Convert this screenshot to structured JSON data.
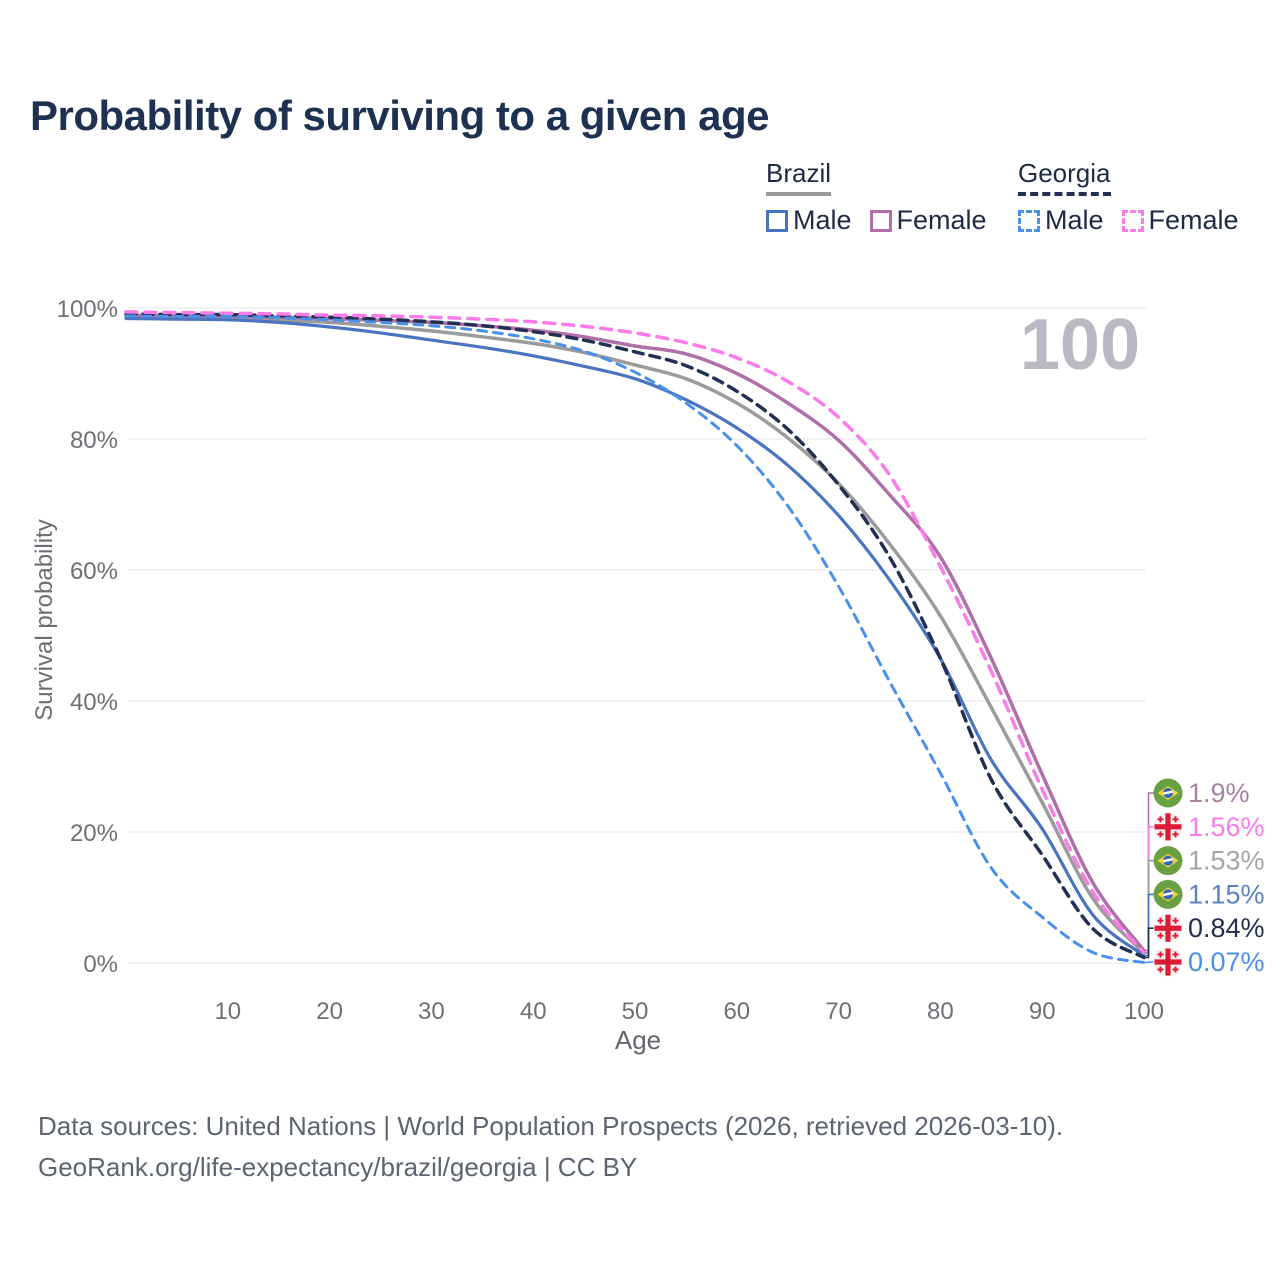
{
  "title": "Probability of surviving to a given age",
  "watermark": "100",
  "legend": {
    "groups": [
      {
        "country": "Brazil",
        "underline_style": "solid",
        "underline_color": "#9b9b9b",
        "items": [
          {
            "label": "Male",
            "color": "#4a74c0",
            "dashed": false
          },
          {
            "label": "Female",
            "color": "#b06fa8",
            "dashed": false
          }
        ]
      },
      {
        "country": "Georgia",
        "underline_style": "dashed",
        "underline_color": "#223053",
        "items": [
          {
            "label": "Male",
            "color": "#4a90e8",
            "dashed": true
          },
          {
            "label": "Female",
            "color": "#fb7ce8",
            "dashed": true
          }
        ]
      }
    ]
  },
  "y_axis": {
    "title": "Survival probability",
    "ticks": [
      "0%",
      "20%",
      "40%",
      "60%",
      "80%",
      "100%"
    ],
    "tick_values": [
      0,
      20,
      40,
      60,
      80,
      100
    ]
  },
  "x_axis": {
    "title": "Age",
    "ticks": [
      10,
      20,
      30,
      40,
      50,
      60,
      70,
      80,
      90,
      100
    ],
    "range": [
      0,
      100
    ]
  },
  "footer": {
    "line1": "Data sources: United Nations | World Population Prospects (2026, retrieved 2026-03-10).",
    "line2": "GeoRank.org/life-expectancy/brazil/georgia | CC BY"
  },
  "chart_data": {
    "type": "line",
    "title": "Probability of surviving to a given age",
    "xlabel": "Age",
    "ylabel": "Survival probability",
    "xlim": [
      0,
      100
    ],
    "ylim": [
      0,
      100
    ],
    "grid": "horizontal",
    "x_ages": [
      0,
      5,
      10,
      15,
      20,
      25,
      30,
      35,
      40,
      45,
      50,
      55,
      60,
      65,
      70,
      75,
      80,
      85,
      90,
      95,
      100
    ],
    "series": [
      {
        "id": "brazil-all",
        "country": "Brazil",
        "group": "All",
        "color": "#9b9b9b",
        "dash": null,
        "width": 3.5,
        "icon": "brazil-flag-icon",
        "end_label": "1.53%",
        "end_value": 1.53,
        "label_color": "#a5a5a5",
        "values": [
          98.7,
          98.6,
          98.5,
          98.2,
          97.8,
          97.2,
          96.5,
          95.6,
          94.6,
          93.2,
          91.3,
          89.2,
          85.5,
          80.2,
          73.2,
          64.0,
          53.0,
          39.0,
          24.5,
          9.8,
          1.53
        ]
      },
      {
        "id": "brazil-male",
        "country": "Brazil",
        "group": "Male",
        "color": "#4a74c0",
        "dash": null,
        "width": 3.2,
        "icon": "brazil-flag-icon",
        "end_label": "1.15%",
        "end_value": 1.15,
        "label_color": "#5b82c4",
        "values": [
          98.4,
          98.3,
          98.2,
          97.8,
          97.1,
          96.2,
          95.1,
          94.0,
          92.7,
          91.1,
          89.2,
          86.0,
          81.7,
          76.0,
          68.3,
          58.5,
          46.5,
          31.0,
          20.5,
          7.3,
          1.15
        ]
      },
      {
        "id": "brazil-female",
        "country": "Brazil",
        "group": "Female",
        "color": "#b06fa8",
        "dash": null,
        "width": 3.5,
        "icon": "brazil-flag-icon",
        "end_label": "1.9%",
        "end_value": 1.9,
        "label_color": "#a881a5",
        "values": [
          98.9,
          98.8,
          98.8,
          98.6,
          98.4,
          98.1,
          97.8,
          97.3,
          96.6,
          95.6,
          94.2,
          93.0,
          90.0,
          85.5,
          79.8,
          71.5,
          62.0,
          46.5,
          28.8,
          12.2,
          1.9
        ]
      },
      {
        "id": "georgia-all",
        "country": "Georgia",
        "group": "All",
        "color": "#223053",
        "dash": "10 7",
        "width": 3.5,
        "icon": "georgia-flag-icon",
        "end_label": "0.84%",
        "end_value": 0.84,
        "label_color": "#22304f",
        "values": [
          99.1,
          99.0,
          99.0,
          98.8,
          98.6,
          98.3,
          97.9,
          97.3,
          96.4,
          95.1,
          93.3,
          91.2,
          87.3,
          81.5,
          73.0,
          62.0,
          46.5,
          28.0,
          16.5,
          5.2,
          0.84
        ]
      },
      {
        "id": "georgia-male",
        "country": "Georgia",
        "group": "Male",
        "color": "#4a90e8",
        "dash": "9 7",
        "width": 3.0,
        "icon": "georgia-flag-icon",
        "end_label": "0.07%",
        "end_value": 0.07,
        "label_color": "#4a90e8",
        "values": [
          98.8,
          98.7,
          98.7,
          98.5,
          98.2,
          97.8,
          97.3,
          96.5,
          95.3,
          93.4,
          90.2,
          85.5,
          79.0,
          69.8,
          57.5,
          43.0,
          29.0,
          14.5,
          7.0,
          1.6,
          0.07
        ]
      },
      {
        "id": "georgia-female",
        "country": "Georgia",
        "group": "Female",
        "color": "#fb7ce8",
        "dash": "11 8",
        "width": 3.5,
        "icon": "georgia-flag-icon",
        "end_label": "1.56%",
        "end_value": 1.56,
        "label_color": "#fb7ce8",
        "values": [
          99.4,
          99.3,
          99.2,
          99.1,
          98.9,
          98.8,
          98.6,
          98.3,
          97.9,
          97.2,
          96.2,
          94.7,
          92.4,
          88.8,
          83.3,
          74.5,
          60.5,
          44.5,
          26.5,
          10.8,
          1.56
        ]
      }
    ]
  },
  "colors": {
    "title": "#1e3150",
    "axis_text": "#6e7076",
    "gridline": "#eaeaee",
    "watermark": "#b9b9c1",
    "brazil_flag_green": "#69a042",
    "brazil_flag_yellow": "#f2d03e",
    "brazil_flag_blue": "#3566bd",
    "georgia_flag_red": "#dc1c36",
    "georgia_flag_bg": "#f6eff0"
  }
}
